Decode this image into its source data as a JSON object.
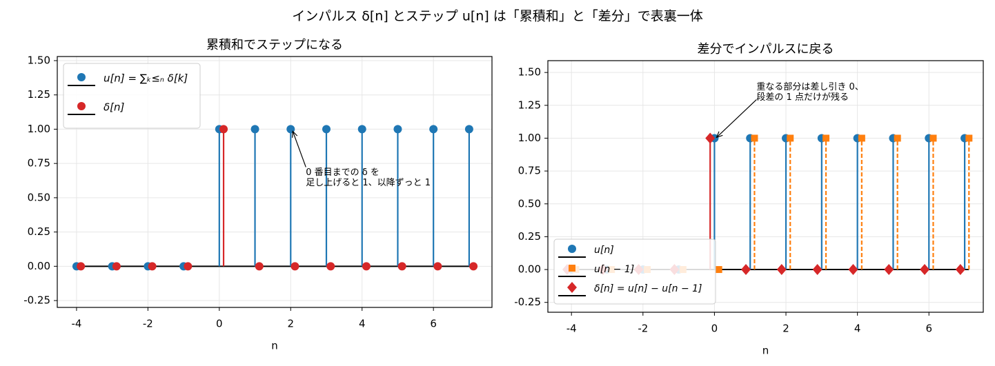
{
  "title": "インパルス δ[n] とステップ u[n] は「累積和」と「差分」で表裏一体",
  "chart_data": [
    {
      "type": "stem",
      "title": "累積和でステップになる",
      "xlabel": "n",
      "xlim": [
        -4.54,
        7.64
      ],
      "xticks": [
        -4,
        -2,
        0,
        2,
        4,
        6
      ],
      "ylim": [
        -0.3,
        1.53
      ],
      "yticks": [
        {
          "value": -0.25,
          "label": "-0.25"
        },
        {
          "value": 0,
          "label": "0.00"
        },
        {
          "value": 0.25,
          "label": "0.25"
        },
        {
          "value": 0.5,
          "label": "0.50"
        },
        {
          "value": 0.75,
          "label": "0.75"
        },
        {
          "value": 1,
          "label": "1.00"
        },
        {
          "value": 1.25,
          "label": "1.25"
        },
        {
          "value": 1.5,
          "label": "1.50"
        }
      ],
      "grid": true,
      "legend": "upper left",
      "series": [
        {
          "name": "u[n] = ∑ₖ≤ₙ δ[k]",
          "color": "#1f77b4",
          "marker": "circle",
          "linestyle": "solid",
          "x": [
            -4,
            -3,
            -2,
            -1,
            0,
            1,
            2,
            3,
            4,
            5,
            6,
            7
          ],
          "values": [
            0,
            0,
            0,
            0,
            1,
            1,
            1,
            1,
            1,
            1,
            1,
            1
          ]
        },
        {
          "name": "δ[n]",
          "color": "#d62728",
          "marker": "circle",
          "linestyle": "solid",
          "x": [
            -3.88,
            -2.88,
            -1.88,
            -0.88,
            0.12,
            1.12,
            2.12,
            3.12,
            4.12,
            5.12,
            6.12,
            7.12
          ],
          "values": [
            0,
            0,
            0,
            0,
            1,
            0,
            0,
            0,
            0,
            0,
            0,
            0
          ]
        }
      ],
      "annotations": [
        {
          "text": [
            "0 番目までの δ を",
            "足し上げると 1、以降ずっと 1"
          ],
          "x": 2,
          "y": 1
        }
      ]
    },
    {
      "type": "stem",
      "title": "差分でインパルスに戻る",
      "xlabel": "n",
      "xlim": [
        -4.66,
        7.52
      ],
      "xticks": [
        -4,
        -2,
        0,
        2,
        4,
        6
      ],
      "ylim": [
        -0.325,
        1.59
      ],
      "yticks": [
        {
          "value": -0.25,
          "label": "-0.25"
        },
        {
          "value": 0,
          "label": "0.00"
        },
        {
          "value": 0.25,
          "label": "0.25"
        },
        {
          "value": 0.5,
          "label": "0.50"
        },
        {
          "value": 0.75,
          "label": "0.75"
        },
        {
          "value": 1,
          "label": "1.00"
        },
        {
          "value": 1.25,
          "label": "1.25"
        },
        {
          "value": 1.5,
          "label": "1.50"
        }
      ],
      "grid": true,
      "legend": "lower left",
      "series": [
        {
          "name": "u[n]",
          "color": "#1f77b4",
          "marker": "circle",
          "linestyle": "solid",
          "x": [
            -4,
            -3,
            -2,
            -1,
            0,
            1,
            2,
            3,
            4,
            5,
            6,
            7
          ],
          "values": [
            0,
            0,
            0,
            0,
            1,
            1,
            1,
            1,
            1,
            1,
            1,
            1
          ]
        },
        {
          "name": "u[n − 1]",
          "color": "#ff7f0e",
          "marker": "square",
          "linestyle": "dashed",
          "x": [
            -3.88,
            -2.88,
            -1.88,
            -0.88,
            0.12,
            1.12,
            2.12,
            3.12,
            4.12,
            5.12,
            6.12,
            7.12
          ],
          "values": [
            0,
            0,
            0,
            0,
            0,
            1,
            1,
            1,
            1,
            1,
            1,
            1
          ]
        },
        {
          "name": "δ[n] = u[n] − u[n − 1]",
          "color": "#d62728",
          "marker": "diamond",
          "linestyle": "solid",
          "x": [
            -4.12,
            -3.12,
            -2.12,
            -1.12,
            -0.12,
            0.88,
            1.88,
            2.88,
            3.88,
            4.88,
            5.88,
            6.88
          ],
          "values": [
            0,
            0,
            0,
            0,
            1,
            0,
            0,
            0,
            0,
            0,
            0,
            0
          ]
        }
      ],
      "annotations": [
        {
          "text": [
            "重なる部分は差し引き 0、",
            "段差の 1 点だけが残る"
          ],
          "x": 0,
          "y": 1
        }
      ]
    }
  ]
}
